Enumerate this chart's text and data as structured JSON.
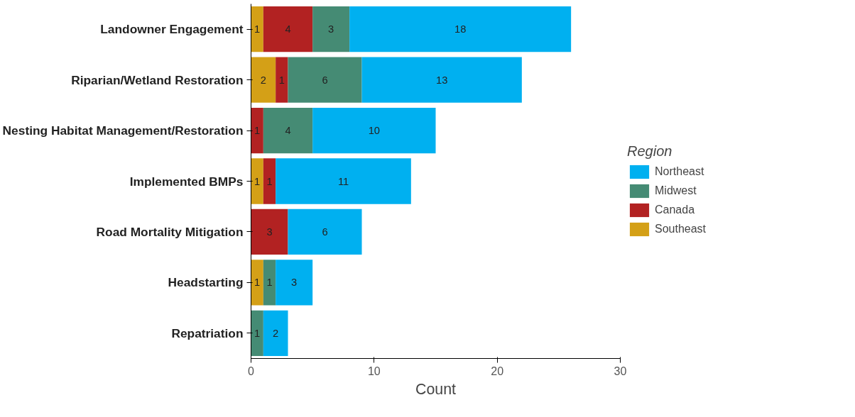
{
  "chart_data": {
    "type": "bar",
    "orientation": "horizontal",
    "stacked": true,
    "categories": [
      "Landowner Engagement",
      "Riparian/Wetland Restoration",
      "Nesting Habitat Management/Restoration",
      "Implemented BMPs",
      "Road Mortality Mitigation",
      "Headstarting",
      "Repatriation"
    ],
    "series": [
      {
        "name": "Southeast",
        "color": "#d4a017",
        "values": [
          1,
          2,
          null,
          1,
          null,
          1,
          null
        ]
      },
      {
        "name": "Canada",
        "color": "#b22222",
        "values": [
          4,
          1,
          1,
          1,
          3,
          null,
          null
        ]
      },
      {
        "name": "Midwest",
        "color": "#458b74",
        "values": [
          3,
          6,
          4,
          null,
          null,
          1,
          1
        ]
      },
      {
        "name": "Northeast",
        "color": "#00b0f0",
        "values": [
          18,
          13,
          10,
          11,
          6,
          3,
          2
        ]
      }
    ],
    "xlim": [
      0,
      30
    ],
    "xticks": [
      0,
      10,
      20,
      30
    ],
    "xlabel": "Count",
    "legend_title": "Region",
    "legend": "right",
    "grid": false,
    "data_labels": true
  }
}
